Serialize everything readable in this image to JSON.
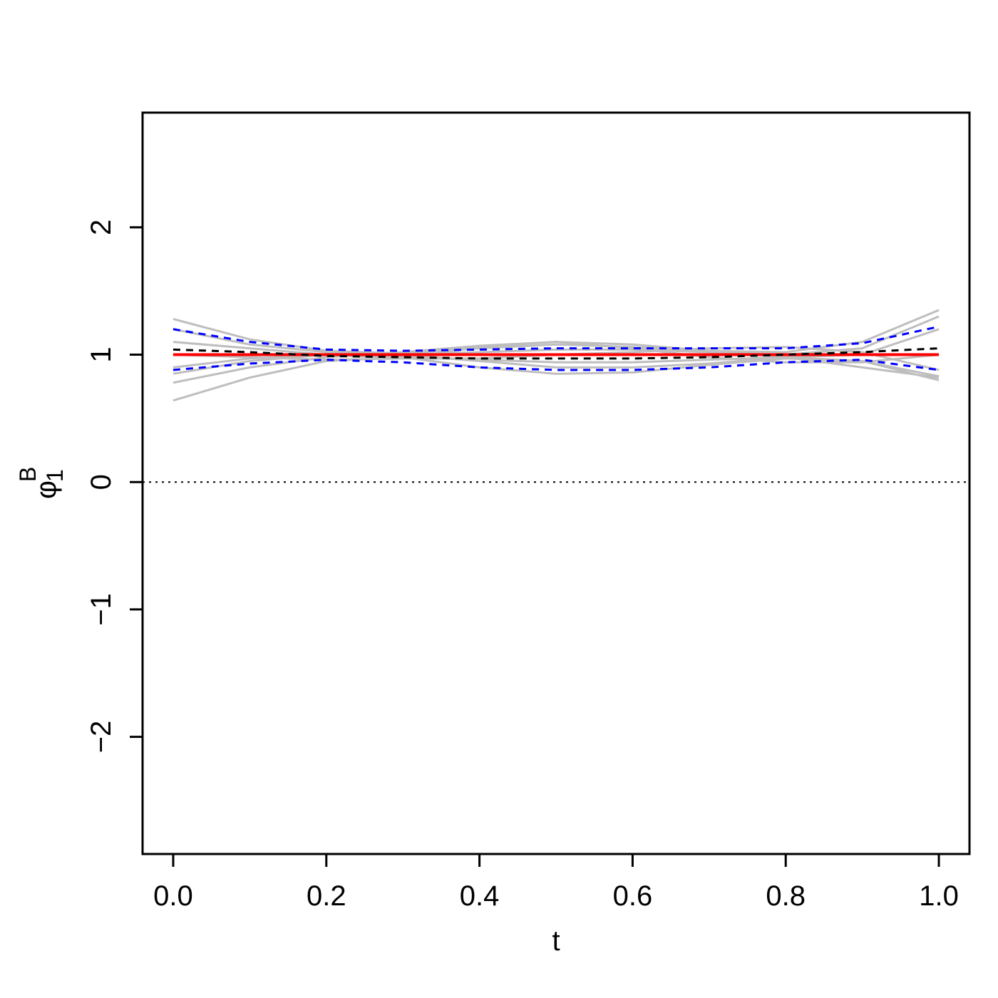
{
  "chart_data": {
    "type": "line",
    "xlabel": "t",
    "ylabel": {
      "symbol": "φ",
      "subscript": "1",
      "superscript": "B"
    },
    "x": [
      0,
      0.1,
      0.2,
      0.3,
      0.4,
      0.5,
      0.6,
      0.7,
      0.8,
      0.9,
      1.0
    ],
    "series": [
      {
        "color": "#bebebe",
        "dash": "solid",
        "values": [
          1.28,
          1.12,
          1.03,
          1.01,
          1.05,
          1.08,
          1.06,
          1.03,
          1.02,
          1.1,
          1.35
        ]
      },
      {
        "color": "#bebebe",
        "dash": "solid",
        "values": [
          0.64,
          0.82,
          0.95,
          0.98,
          0.96,
          0.94,
          0.94,
          0.96,
          0.98,
          0.95,
          0.8
        ]
      },
      {
        "color": "#bebebe",
        "dash": "solid",
        "values": [
          0.85,
          0.95,
          1.0,
          0.98,
          0.9,
          0.85,
          0.86,
          0.92,
          0.97,
          0.95,
          0.83
        ]
      },
      {
        "color": "#bebebe",
        "dash": "solid",
        "values": [
          1.2,
          1.08,
          1.02,
          1.0,
          1.02,
          1.04,
          1.04,
          1.02,
          1.0,
          1.05,
          1.3
        ]
      },
      {
        "color": "#bebebe",
        "dash": "solid",
        "values": [
          0.9,
          0.97,
          1.0,
          1.0,
          0.95,
          0.9,
          0.9,
          0.93,
          0.98,
          1.0,
          1.2
        ]
      },
      {
        "color": "#bebebe",
        "dash": "solid",
        "values": [
          1.1,
          1.05,
          1.0,
          0.97,
          0.97,
          1.0,
          1.02,
          1.05,
          1.06,
          1.02,
          0.88
        ]
      },
      {
        "color": "#bebebe",
        "dash": "solid",
        "values": [
          1.0,
          0.98,
          0.96,
          0.97,
          1.06,
          1.1,
          1.08,
          1.03,
          0.98,
          0.9,
          0.82
        ]
      },
      {
        "color": "#bebebe",
        "dash": "solid",
        "values": [
          0.78,
          0.9,
          0.98,
          1.02,
          1.07,
          1.1,
          1.05,
          0.98,
          0.94,
          0.94,
          1.0
        ]
      },
      {
        "color": "#ff0000",
        "dash": "solid",
        "values": [
          1,
          1,
          1,
          1,
          1,
          1,
          1,
          1,
          1,
          1,
          1
        ]
      },
      {
        "color": "#000000",
        "dash": "dashed",
        "values": [
          1.04,
          1.02,
          0.99,
          0.98,
          0.97,
          0.97,
          0.97,
          0.98,
          1.0,
          1.02,
          1.05
        ]
      },
      {
        "color": "#0000ff",
        "dash": "dashed",
        "values": [
          1.2,
          1.1,
          1.04,
          1.03,
          1.04,
          1.05,
          1.05,
          1.05,
          1.05,
          1.09,
          1.22
        ]
      },
      {
        "color": "#0000ff",
        "dash": "dashed",
        "values": [
          0.88,
          0.93,
          0.96,
          0.94,
          0.9,
          0.88,
          0.88,
          0.9,
          0.94,
          0.96,
          0.88
        ]
      }
    ],
    "hlines": [
      {
        "value": 0,
        "color": "#000000",
        "dash": "dotted"
      }
    ],
    "xlim": [
      -0.04,
      1.04
    ],
    "ylim": [
      -2.92,
      2.9
    ],
    "xticks": [
      {
        "value": 0,
        "label": "0.0"
      },
      {
        "value": 0.2,
        "label": "0.2"
      },
      {
        "value": 0.4,
        "label": "0.4"
      },
      {
        "value": 0.6,
        "label": "0.6"
      },
      {
        "value": 0.8,
        "label": "0.8"
      },
      {
        "value": 1.0,
        "label": "1.0"
      }
    ],
    "yticks": [
      {
        "value": -2,
        "label": "−2"
      },
      {
        "value": -1,
        "label": "−1"
      },
      0,
      1,
      2
    ],
    "grid": false
  }
}
